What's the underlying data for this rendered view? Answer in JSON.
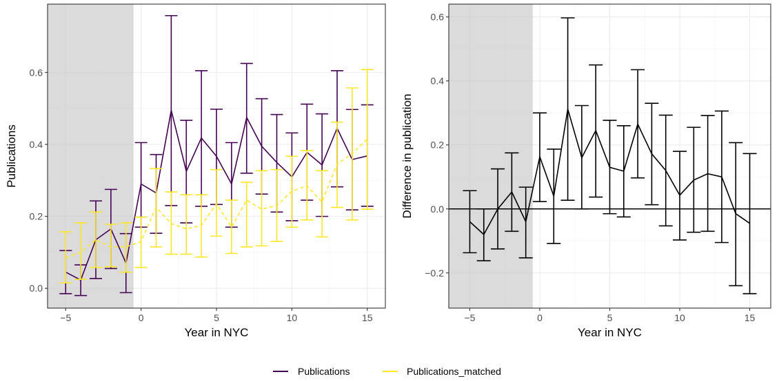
{
  "chart_data": [
    {
      "type": "line",
      "panel": "left",
      "xlabel": "Year in NYC",
      "ylabel": "Publications",
      "xlim": [
        -6.2,
        16.2
      ],
      "ylim": [
        -0.055,
        0.79
      ],
      "xticks": [
        -5,
        0,
        5,
        10,
        15
      ],
      "xtick_labels": [
        "−5",
        "0",
        "5",
        "10",
        "15"
      ],
      "yticks": [
        0.0,
        0.2,
        0.4,
        0.6
      ],
      "ytick_labels": [
        "0.0",
        "0.2",
        "0.4",
        "0.6"
      ],
      "shaded_region": [
        -6.2,
        -0.5
      ],
      "grid": true,
      "series": [
        {
          "name": "Publications",
          "color": "#440154",
          "style": "solid",
          "x": [
            -5,
            -4,
            -3,
            -2,
            -1,
            0,
            1,
            2,
            3,
            4,
            5,
            6,
            7,
            8,
            9,
            10,
            11,
            12,
            13,
            14,
            15
          ],
          "y": [
            0.045,
            0.023,
            0.135,
            0.165,
            0.07,
            0.29,
            0.265,
            0.495,
            0.325,
            0.418,
            0.367,
            0.29,
            0.475,
            0.395,
            0.35,
            0.31,
            0.378,
            0.343,
            0.445,
            0.358,
            0.368
          ],
          "lower": [
            -0.015,
            -0.02,
            0.027,
            0.055,
            -0.012,
            0.17,
            0.153,
            0.23,
            0.182,
            0.228,
            0.233,
            0.17,
            0.32,
            0.262,
            0.212,
            0.188,
            0.245,
            0.2,
            0.282,
            0.218,
            0.228
          ],
          "upper": [
            0.105,
            0.065,
            0.243,
            0.275,
            0.152,
            0.405,
            0.372,
            0.758,
            0.467,
            0.605,
            0.498,
            0.405,
            0.625,
            0.527,
            0.483,
            0.432,
            0.512,
            0.485,
            0.605,
            0.497,
            0.51
          ]
        },
        {
          "name": "Publications_matched",
          "color": "#FDE725",
          "style": "dashed",
          "x": [
            -5,
            -4,
            -3,
            -2,
            -1,
            0,
            1,
            2,
            3,
            4,
            5,
            6,
            7,
            8,
            9,
            10,
            11,
            12,
            13,
            14,
            15
          ],
          "y": [
            0.085,
            0.1,
            0.135,
            0.115,
            0.115,
            0.13,
            0.225,
            0.18,
            0.165,
            0.175,
            0.235,
            0.17,
            0.245,
            0.22,
            0.23,
            0.27,
            0.285,
            0.24,
            0.345,
            0.375,
            0.415
          ],
          "lower": [
            0.015,
            0.025,
            0.058,
            0.06,
            0.045,
            0.058,
            0.115,
            0.095,
            0.095,
            0.087,
            0.145,
            0.097,
            0.115,
            0.118,
            0.13,
            0.17,
            0.19,
            0.143,
            0.225,
            0.19,
            0.22
          ],
          "upper": [
            0.157,
            0.182,
            0.212,
            0.178,
            0.182,
            0.198,
            0.333,
            0.268,
            0.26,
            0.26,
            0.33,
            0.245,
            0.295,
            0.327,
            0.33,
            0.367,
            0.383,
            0.327,
            0.462,
            0.557,
            0.608
          ]
        }
      ]
    },
    {
      "type": "line",
      "panel": "right",
      "xlabel": "Year in NYC",
      "ylabel": "Difference in publication",
      "xlim": [
        -6.5,
        16.5
      ],
      "ylim": [
        -0.31,
        0.64
      ],
      "xticks": [
        -5,
        0,
        5,
        10,
        15
      ],
      "xtick_labels": [
        "−5",
        "0",
        "5",
        "10",
        "15"
      ],
      "yticks": [
        -0.2,
        0.0,
        0.2,
        0.4,
        0.6
      ],
      "ytick_labels": [
        "−0.2",
        "0.0",
        "0.2",
        "0.4",
        "0.6"
      ],
      "shaded_region": [
        -6.5,
        -0.5
      ],
      "hline": 0,
      "grid": true,
      "series": [
        {
          "name": "",
          "color": "#000000",
          "style": "solid",
          "x": [
            -5,
            -4,
            -3,
            -2,
            -1,
            0,
            1,
            2,
            3,
            4,
            5,
            6,
            7,
            8,
            9,
            10,
            11,
            12,
            13,
            14,
            15
          ],
          "y": [
            -0.04,
            -0.08,
            0.0,
            0.053,
            -0.04,
            0.163,
            0.04,
            0.312,
            0.16,
            0.245,
            0.13,
            0.118,
            0.265,
            0.172,
            0.12,
            0.043,
            0.09,
            0.11,
            0.1,
            -0.015,
            -0.045
          ],
          "lower": [
            -0.137,
            -0.162,
            -0.125,
            -0.07,
            -0.153,
            0.023,
            -0.108,
            0.027,
            0.0,
            0.037,
            -0.015,
            -0.025,
            0.097,
            0.013,
            -0.053,
            -0.097,
            -0.073,
            -0.07,
            -0.105,
            -0.24,
            -0.265
          ],
          "upper": [
            0.057,
            0.0,
            0.125,
            0.175,
            0.068,
            0.3,
            0.187,
            0.597,
            0.323,
            0.45,
            0.277,
            0.26,
            0.435,
            0.33,
            0.293,
            0.18,
            0.255,
            0.292,
            0.306,
            0.207,
            0.173
          ]
        }
      ]
    }
  ],
  "legend": {
    "position": "bottom",
    "items": [
      {
        "label": "Publications",
        "color": "#440154"
      },
      {
        "label": "Publications_matched",
        "color": "#FDE725"
      }
    ]
  }
}
